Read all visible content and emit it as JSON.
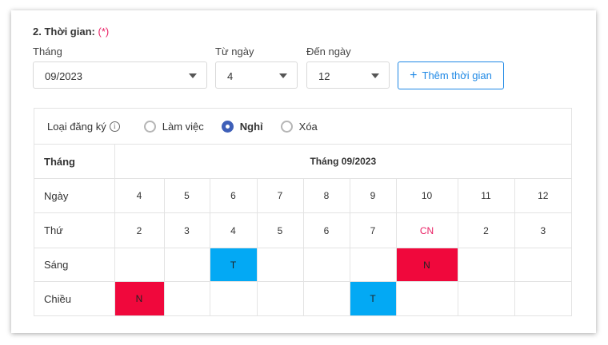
{
  "section": {
    "title": "2. Thời gian:",
    "required_mark": "(*)"
  },
  "fields": {
    "month": {
      "label": "Tháng",
      "value": "09/2023"
    },
    "from_day": {
      "label": "Từ ngày",
      "value": "4"
    },
    "to_day": {
      "label": "Đến ngày",
      "value": "12"
    },
    "add_button": "Thêm thời gian"
  },
  "registration": {
    "label": "Loại đăng ký",
    "options": [
      {
        "label": "Làm việc",
        "checked": false
      },
      {
        "label": "Nghỉ",
        "checked": true
      },
      {
        "label": "Xóa",
        "checked": false
      }
    ]
  },
  "grid": {
    "month_row_label": "Tháng",
    "month_header": "Tháng 09/2023",
    "day_row_label": "Ngày",
    "days": [
      "4",
      "5",
      "6",
      "7",
      "8",
      "9",
      "10",
      "11",
      "12"
    ],
    "weekday_row_label": "Thứ",
    "weekdays": [
      "2",
      "3",
      "4",
      "5",
      "6",
      "7",
      "CN",
      "2",
      "3"
    ],
    "morning_row_label": "Sáng",
    "morning": [
      "",
      "",
      "T",
      "",
      "",
      "",
      "N",
      "",
      ""
    ],
    "afternoon_row_label": "Chiều",
    "afternoon": [
      "N",
      "",
      "",
      "",
      "",
      "T",
      "",
      "",
      ""
    ]
  },
  "colors": {
    "accent": "#1e88e5",
    "radio_checked": "#3e5fb8",
    "cell_T": "#03a9f4",
    "cell_N": "#f0083c",
    "sunday_text": "#e91e63"
  }
}
